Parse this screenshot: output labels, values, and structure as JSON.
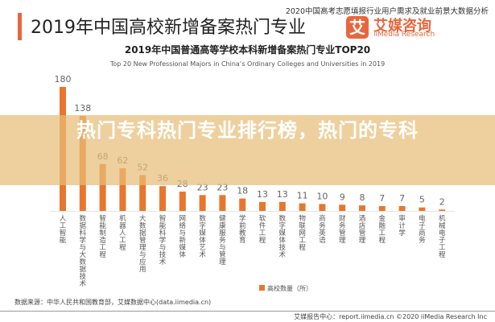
{
  "header": {
    "title": "2019年中国高校新增备案热门专业",
    "report_name": "2020中国高考志愿填报行业用户需求及就业前景大数据分析",
    "brand_cn": "艾媒咨询",
    "brand_en": "iiMedia Research",
    "logo_char": "艾"
  },
  "banner": {
    "text": "热门专科热门专业排行榜，热门的专科"
  },
  "chart_data": {
    "type": "bar",
    "title": "2019年中国普通高等学校本科新增备案热门专业TOP20",
    "subtitle": "Top 20 New Professional Majors in China’s Ordinary Colleges and Universities in 2019",
    "categories": [
      "人工智能",
      "数据科学与大数据技术",
      "智能制造工程",
      "机器人工程",
      "大数据管理与应用",
      "智能科学与技术",
      "网络与新媒体",
      "数字媒体艺术",
      "健康服务与管理",
      "学前教育",
      "软件工程",
      "数字媒体技术",
      "物联网工程",
      "商务英语",
      "财务管理",
      "酒店管理",
      "金融工程",
      "审计学",
      "电子商务",
      "机械电子工程"
    ],
    "series": [
      {
        "name": "高校数量（所）",
        "values": [
          180,
          138,
          68,
          62,
          52,
          36,
          28,
          23,
          23,
          18,
          13,
          13,
          11,
          10,
          9,
          8,
          7,
          7,
          5,
          2
        ]
      }
    ],
    "ylim": [
      0,
      180
    ],
    "grid": false,
    "legend": "bottom",
    "color": "#e8762d"
  },
  "footer": {
    "source": "数据来源：中华人民共和国教育部，艾媒数据中心(data.iimedia.cn)",
    "copyright": "艾媒报告中心：report.iimedia.cn  ©2020  iiMedia Research Inc"
  }
}
